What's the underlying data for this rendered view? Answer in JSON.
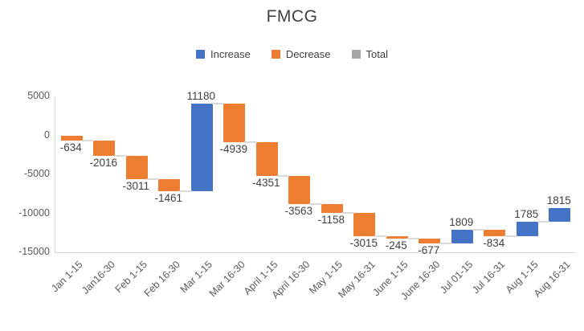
{
  "title": "FMCG",
  "legend": [
    {
      "name": "increase",
      "label": "Increase",
      "color": "#4472C4"
    },
    {
      "name": "decrease",
      "label": "Decrease",
      "color": "#ED7D31"
    },
    {
      "name": "total",
      "label": "Total",
      "color": "#A5A5A5"
    }
  ],
  "chart_data": {
    "type": "bar",
    "subtype": "waterfall",
    "title": "FMCG",
    "categories": [
      "Jan 1-15",
      "Jan16-30",
      "Feb 1-15",
      "Feb 16-30",
      "Mar 1-15",
      "Mar 16-30",
      "April 1-15",
      "April 16-30",
      "May 1-15",
      "May 16-31",
      "June 1-15",
      "June 16-30",
      "Jul 01-15",
      "Jul 16-31",
      "Aug 1-15",
      "Aug 16-31"
    ],
    "values": [
      -634,
      -2016,
      -3011,
      -1461,
      11180,
      -4939,
      -4351,
      -3563,
      -1158,
      -3015,
      -245,
      -677,
      1809,
      -834,
      1785,
      1815
    ],
    "data_labels": [
      "-634",
      "-2016",
      "-3011",
      "-1461",
      "11180",
      "-4939",
      "-4351",
      "-3563",
      "-1158",
      "-3015",
      "-245",
      "-677",
      "1809",
      "-834",
      "1785",
      "1815"
    ],
    "xlabel": "",
    "ylabel": "",
    "ylim": [
      -15000,
      5000
    ],
    "ytick_values": [
      5000,
      0,
      -5000,
      -10000,
      -15000
    ],
    "ytick_labels": [
      "5000",
      "0",
      "-5000",
      "-10000",
      "-15000"
    ],
    "grid": false,
    "legend_position": "top",
    "colors": {
      "increase": "#4472C4",
      "decrease": "#ED7D31",
      "total": "#A5A5A5",
      "connector": "#D9D9D9",
      "axis_line": "#D9D9D9",
      "value_label_text": "#404040",
      "tick_text": "#595959",
      "title_text": "#404040"
    }
  }
}
